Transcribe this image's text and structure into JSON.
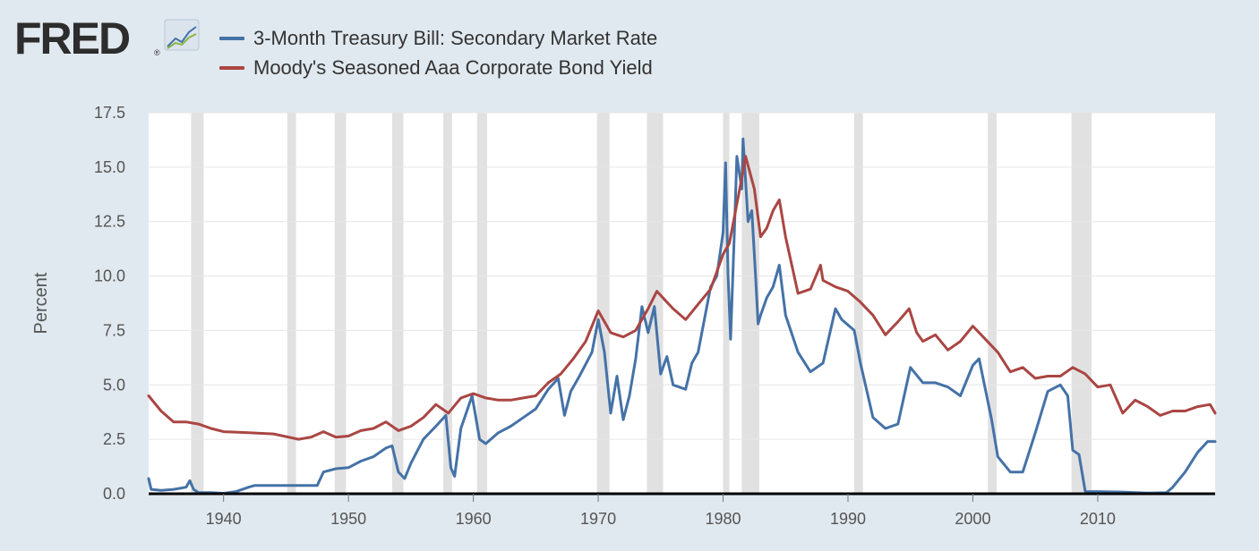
{
  "brand": {
    "logo_text": "FRED"
  },
  "colors": {
    "background": "#e1e9f0",
    "plot_bg": "#ffffff",
    "recession": "#e1e1e1",
    "grid": "#e6e6e6",
    "tbill": "#4572a7",
    "aaa": "#aa4643",
    "axis": "#000000"
  },
  "legend": [
    {
      "label": "3-Month Treasury Bill: Secondary Market Rate",
      "color": "#4572a7"
    },
    {
      "label": "Moody's Seasoned Aaa Corporate Bond Yield",
      "color": "#aa4643"
    }
  ],
  "chart_data": {
    "type": "line",
    "xlabel": "",
    "ylabel": "Percent",
    "xlim": [
      1934,
      2019.4
    ],
    "ylim": [
      0,
      17.5
    ],
    "x_ticks": [
      1940,
      1950,
      1960,
      1970,
      1980,
      1990,
      2000,
      2010
    ],
    "y_ticks": [
      "0.0",
      "2.5",
      "5.0",
      "7.5",
      "10.0",
      "12.5",
      "15.0",
      "17.5"
    ],
    "grid": true,
    "legend_position": "top-left",
    "recessions": [
      [
        1937.4,
        1938.4
      ],
      [
        1945.1,
        1945.8
      ],
      [
        1948.9,
        1949.8
      ],
      [
        1953.5,
        1954.4
      ],
      [
        1957.6,
        1958.3
      ],
      [
        1960.3,
        1961.1
      ],
      [
        1969.9,
        1970.9
      ],
      [
        1973.9,
        1975.2
      ],
      [
        1980.0,
        1980.5
      ],
      [
        1981.5,
        1982.9
      ],
      [
        1990.5,
        1991.2
      ],
      [
        2001.2,
        2001.9
      ],
      [
        2007.9,
        2009.5
      ]
    ],
    "series": [
      {
        "name": "3-Month Treasury Bill: Secondary Market Rate",
        "color": "#4572a7",
        "points": [
          [
            1934.0,
            0.7
          ],
          [
            1934.2,
            0.2
          ],
          [
            1935.0,
            0.15
          ],
          [
            1936.0,
            0.2
          ],
          [
            1937.0,
            0.3
          ],
          [
            1937.3,
            0.6
          ],
          [
            1937.6,
            0.2
          ],
          [
            1938.0,
            0.05
          ],
          [
            1939.0,
            0.05
          ],
          [
            1940.0,
            0.02
          ],
          [
            1941.0,
            0.1
          ],
          [
            1942.0,
            0.3
          ],
          [
            1942.5,
            0.38
          ],
          [
            1947.5,
            0.38
          ],
          [
            1948.0,
            1.0
          ],
          [
            1949.0,
            1.15
          ],
          [
            1950.0,
            1.2
          ],
          [
            1951.0,
            1.5
          ],
          [
            1952.0,
            1.7
          ],
          [
            1953.0,
            2.1
          ],
          [
            1953.5,
            2.2
          ],
          [
            1954.0,
            1.0
          ],
          [
            1954.5,
            0.7
          ],
          [
            1955.0,
            1.4
          ],
          [
            1956.0,
            2.5
          ],
          [
            1957.0,
            3.1
          ],
          [
            1957.8,
            3.6
          ],
          [
            1958.2,
            1.2
          ],
          [
            1958.5,
            0.8
          ],
          [
            1959.0,
            3.0
          ],
          [
            1959.9,
            4.5
          ],
          [
            1960.5,
            2.5
          ],
          [
            1961.0,
            2.3
          ],
          [
            1962.0,
            2.8
          ],
          [
            1963.0,
            3.1
          ],
          [
            1964.0,
            3.5
          ],
          [
            1965.0,
            3.9
          ],
          [
            1966.0,
            4.8
          ],
          [
            1966.8,
            5.3
          ],
          [
            1967.3,
            3.6
          ],
          [
            1967.8,
            4.7
          ],
          [
            1968.5,
            5.4
          ],
          [
            1969.5,
            6.5
          ],
          [
            1970.0,
            8.0
          ],
          [
            1970.5,
            6.5
          ],
          [
            1971.0,
            3.7
          ],
          [
            1971.5,
            5.4
          ],
          [
            1972.0,
            3.4
          ],
          [
            1972.5,
            4.5
          ],
          [
            1973.0,
            6.2
          ],
          [
            1973.5,
            8.6
          ],
          [
            1974.0,
            7.4
          ],
          [
            1974.5,
            8.6
          ],
          [
            1975.0,
            5.5
          ],
          [
            1975.5,
            6.3
          ],
          [
            1976.0,
            5.0
          ],
          [
            1977.0,
            4.8
          ],
          [
            1977.5,
            6.0
          ],
          [
            1978.0,
            6.5
          ],
          [
            1979.0,
            9.5
          ],
          [
            1979.5,
            10.0
          ],
          [
            1980.0,
            12.0
          ],
          [
            1980.2,
            15.2
          ],
          [
            1980.4,
            10.0
          ],
          [
            1980.6,
            7.1
          ],
          [
            1980.9,
            12.0
          ],
          [
            1981.1,
            15.5
          ],
          [
            1981.5,
            14.0
          ],
          [
            1981.6,
            16.3
          ],
          [
            1982.0,
            12.5
          ],
          [
            1982.3,
            13.0
          ],
          [
            1982.6,
            10.0
          ],
          [
            1982.8,
            7.8
          ],
          [
            1983.0,
            8.2
          ],
          [
            1983.5,
            9.0
          ],
          [
            1984.0,
            9.5
          ],
          [
            1984.5,
            10.5
          ],
          [
            1985.0,
            8.2
          ],
          [
            1986.0,
            6.5
          ],
          [
            1987.0,
            5.6
          ],
          [
            1988.0,
            6.0
          ],
          [
            1989.0,
            8.5
          ],
          [
            1989.5,
            8.0
          ],
          [
            1990.5,
            7.5
          ],
          [
            1991.0,
            6.0
          ],
          [
            1992.0,
            3.5
          ],
          [
            1993.0,
            3.0
          ],
          [
            1994.0,
            3.2
          ],
          [
            1995.0,
            5.8
          ],
          [
            1996.0,
            5.1
          ],
          [
            1997.0,
            5.1
          ],
          [
            1998.0,
            4.9
          ],
          [
            1999.0,
            4.5
          ],
          [
            2000.0,
            5.9
          ],
          [
            2000.5,
            6.2
          ],
          [
            2001.0,
            4.8
          ],
          [
            2001.5,
            3.4
          ],
          [
            2002.0,
            1.7
          ],
          [
            2003.0,
            1.0
          ],
          [
            2004.0,
            1.0
          ],
          [
            2005.0,
            2.8
          ],
          [
            2006.0,
            4.7
          ],
          [
            2007.0,
            5.0
          ],
          [
            2007.6,
            4.5
          ],
          [
            2008.0,
            2.0
          ],
          [
            2008.5,
            1.8
          ],
          [
            2009.0,
            0.1
          ],
          [
            2010.0,
            0.1
          ],
          [
            2012.0,
            0.08
          ],
          [
            2014.0,
            0.03
          ],
          [
            2015.5,
            0.05
          ],
          [
            2016.0,
            0.3
          ],
          [
            2017.0,
            1.0
          ],
          [
            2018.0,
            1.9
          ],
          [
            2018.8,
            2.4
          ],
          [
            2019.4,
            2.4
          ]
        ]
      },
      {
        "name": "Moody's Seasoned Aaa Corporate Bond Yield",
        "color": "#aa4643",
        "points": [
          [
            1934.0,
            4.5
          ],
          [
            1935.0,
            3.8
          ],
          [
            1936.0,
            3.3
          ],
          [
            1937.0,
            3.3
          ],
          [
            1938.0,
            3.2
          ],
          [
            1939.0,
            3.0
          ],
          [
            1940.0,
            2.85
          ],
          [
            1942.0,
            2.8
          ],
          [
            1944.0,
            2.75
          ],
          [
            1946.0,
            2.5
          ],
          [
            1947.0,
            2.6
          ],
          [
            1948.0,
            2.85
          ],
          [
            1949.0,
            2.6
          ],
          [
            1950.0,
            2.65
          ],
          [
            1951.0,
            2.9
          ],
          [
            1952.0,
            3.0
          ],
          [
            1953.0,
            3.3
          ],
          [
            1954.0,
            2.9
          ],
          [
            1955.0,
            3.1
          ],
          [
            1956.0,
            3.5
          ],
          [
            1957.0,
            4.1
          ],
          [
            1958.0,
            3.7
          ],
          [
            1959.0,
            4.4
          ],
          [
            1960.0,
            4.6
          ],
          [
            1961.0,
            4.4
          ],
          [
            1962.0,
            4.3
          ],
          [
            1963.0,
            4.3
          ],
          [
            1964.0,
            4.4
          ],
          [
            1965.0,
            4.5
          ],
          [
            1966.0,
            5.1
          ],
          [
            1967.0,
            5.5
          ],
          [
            1968.0,
            6.2
          ],
          [
            1969.0,
            7.0
          ],
          [
            1970.0,
            8.4
          ],
          [
            1971.0,
            7.4
          ],
          [
            1972.0,
            7.2
          ],
          [
            1973.0,
            7.5
          ],
          [
            1974.0,
            8.5
          ],
          [
            1974.7,
            9.3
          ],
          [
            1975.5,
            8.8
          ],
          [
            1976.0,
            8.5
          ],
          [
            1977.0,
            8.0
          ],
          [
            1978.0,
            8.7
          ],
          [
            1979.0,
            9.4
          ],
          [
            1980.0,
            11.0
          ],
          [
            1980.5,
            11.5
          ],
          [
            1981.0,
            13.0
          ],
          [
            1981.5,
            14.5
          ],
          [
            1981.8,
            15.5
          ],
          [
            1982.5,
            14.0
          ],
          [
            1983.0,
            11.8
          ],
          [
            1983.5,
            12.2
          ],
          [
            1984.0,
            13.0
          ],
          [
            1984.5,
            13.5
          ],
          [
            1985.0,
            11.8
          ],
          [
            1986.0,
            9.2
          ],
          [
            1987.0,
            9.4
          ],
          [
            1987.8,
            10.5
          ],
          [
            1988.0,
            9.8
          ],
          [
            1989.0,
            9.5
          ],
          [
            1990.0,
            9.3
          ],
          [
            1991.0,
            8.8
          ],
          [
            1992.0,
            8.2
          ],
          [
            1993.0,
            7.3
          ],
          [
            1994.0,
            7.9
          ],
          [
            1994.9,
            8.5
          ],
          [
            1995.5,
            7.4
          ],
          [
            1996.0,
            7.0
          ],
          [
            1997.0,
            7.3
          ],
          [
            1998.0,
            6.6
          ],
          [
            1999.0,
            7.0
          ],
          [
            2000.0,
            7.7
          ],
          [
            2001.0,
            7.1
          ],
          [
            2002.0,
            6.5
          ],
          [
            2003.0,
            5.6
          ],
          [
            2004.0,
            5.8
          ],
          [
            2005.0,
            5.3
          ],
          [
            2006.0,
            5.4
          ],
          [
            2007.0,
            5.4
          ],
          [
            2008.0,
            5.8
          ],
          [
            2009.0,
            5.5
          ],
          [
            2010.0,
            4.9
          ],
          [
            2011.0,
            5.0
          ],
          [
            2012.0,
            3.7
          ],
          [
            2013.0,
            4.3
          ],
          [
            2014.0,
            4.0
          ],
          [
            2015.0,
            3.6
          ],
          [
            2016.0,
            3.8
          ],
          [
            2017.0,
            3.8
          ],
          [
            2018.0,
            4.0
          ],
          [
            2019.0,
            4.1
          ],
          [
            2019.4,
            3.7
          ]
        ]
      }
    ]
  }
}
